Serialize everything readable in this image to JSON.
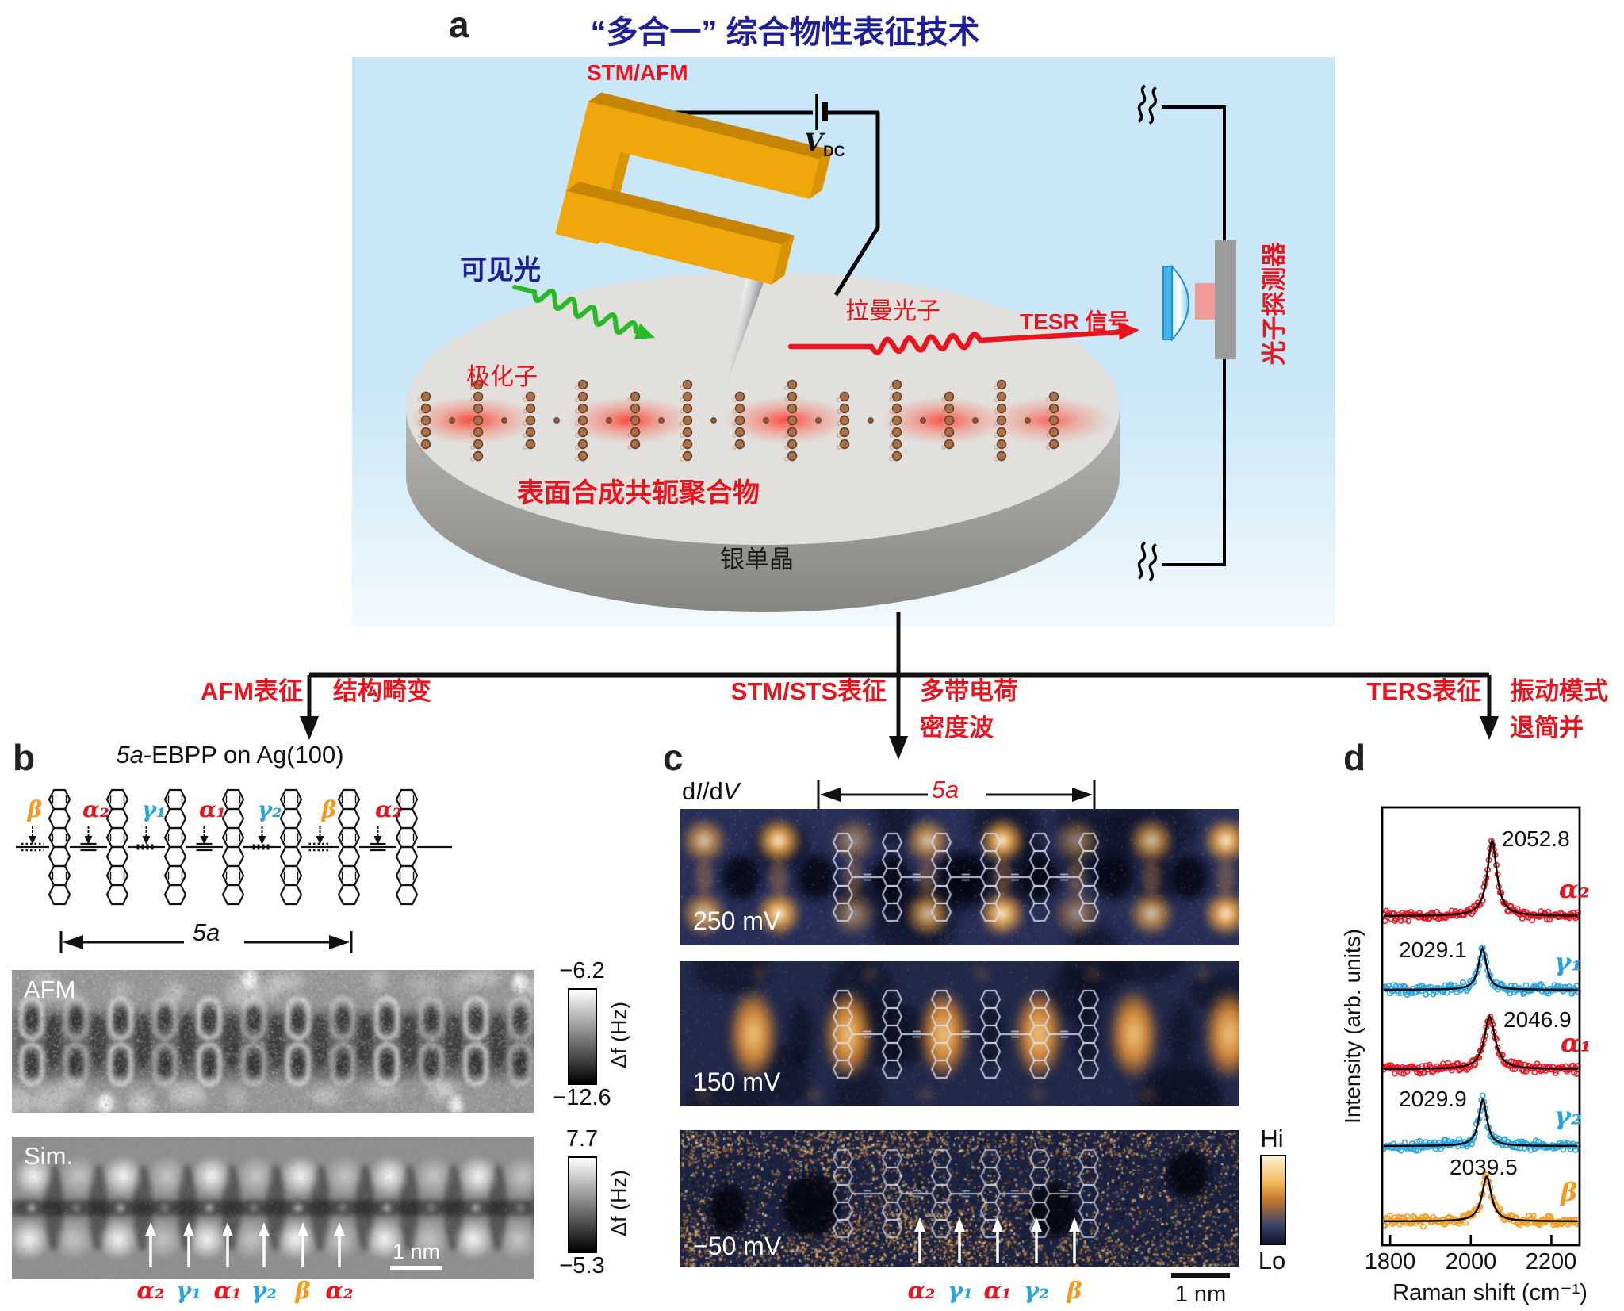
{
  "title": "“多合一” 综合物性表征技术",
  "panel_a": {
    "label": "a",
    "stm_afm": "STM/AFM",
    "vdc": {
      "v": "V",
      "sub": "DC"
    },
    "visible_light": "可见光",
    "polaron": "极化子",
    "raman_photon": "拉曼光子",
    "tesr_signal": "TESR 信号",
    "photon_detector": "光子探测器",
    "polymer": "表面合成共轭聚合物",
    "silver_crystal": "银单晶"
  },
  "branches": [
    {
      "method": "AFM表征",
      "result1": "结构畸变",
      "result2": ""
    },
    {
      "method": "STM/STS表征",
      "result1": "多带电荷",
      "result2": "密度波"
    },
    {
      "method": "TERS表征",
      "result1": "振动模式",
      "result2": "退简并"
    }
  ],
  "panel_b": {
    "label": "b",
    "title_pre": "5a",
    "title_rest": "-EBPP on Ag(100)",
    "bond_labels": [
      {
        "t": "β",
        "c": "#f59a1d"
      },
      {
        "t": "α₂",
        "c": "#e8141e"
      },
      {
        "t": "γ₁",
        "c": "#29a3dc"
      },
      {
        "t": "α₁",
        "c": "#e8141e"
      },
      {
        "t": "γ₂",
        "c": "#29a3dc"
      },
      {
        "t": "β",
        "c": "#f59a1d"
      },
      {
        "t": "α₂",
        "c": "#e8141e"
      }
    ],
    "span_label": "5a",
    "afm_tag": "AFM",
    "sim_tag": "Sim.",
    "afm_scale": {
      "top": "−6.2",
      "bottom": "−12.6",
      "unit": "Δf (Hz)"
    },
    "sim_scale": {
      "top": "7.7",
      "bottom": "−5.3",
      "unit": "Δf (Hz)"
    },
    "arrow_labels": [
      {
        "t": "α₂",
        "c": "#e8141e"
      },
      {
        "t": "γ₁",
        "c": "#29a3dc"
      },
      {
        "t": "α₁",
        "c": "#e8141e"
      },
      {
        "t": "γ₂",
        "c": "#29a3dc"
      },
      {
        "t": "β",
        "c": "#f59a1d"
      },
      {
        "t": "α₂",
        "c": "#e8141e"
      }
    ],
    "scalebar": "1 nm"
  },
  "panel_c": {
    "label": "c",
    "didv": {
      "d1": "d",
      "i": "I",
      "d2": "/d",
      "v": "V"
    },
    "span_label": "5a",
    "bias_labels": [
      "250 mV",
      "150 mV",
      "−50 mV"
    ],
    "colorbar": {
      "hi": "Hi",
      "lo": "Lo"
    },
    "arrow_labels": [
      {
        "t": "α₂",
        "c": "#e8141e"
      },
      {
        "t": "γ₁",
        "c": "#29a3dc"
      },
      {
        "t": "α₁",
        "c": "#e8141e"
      },
      {
        "t": "γ₂",
        "c": "#29a3dc"
      },
      {
        "t": "β",
        "c": "#f59a1d"
      }
    ],
    "scalebar": "1 nm"
  },
  "panel_d": {
    "label": "d",
    "ylabel": "Intensity (arb. units)",
    "xlabel": "Raman shift (cm⁻¹)"
  },
  "chart_data": {
    "type": "scatter",
    "title": "TERS spectra of bond modes",
    "xlabel": "Raman shift (cm⁻¹)",
    "ylabel": "Intensity (arb. units)",
    "xlim": [
      1780,
      2270
    ],
    "xticks": [
      1800,
      2000,
      2200
    ],
    "stacked": true,
    "fit_color": "#000000",
    "series": [
      {
        "name": "α₂",
        "color": "#e8141e",
        "peak": 2052.8,
        "peak_label": "2052.8",
        "height": 1.0,
        "fwhm": 28
      },
      {
        "name": "γ₁",
        "color": "#29a3dc",
        "peak": 2029.1,
        "peak_label": "2029.1",
        "height": 0.55,
        "fwhm": 24
      },
      {
        "name": "α₁",
        "color": "#e8141e",
        "peak": 2046.9,
        "peak_label": "2046.9",
        "height": 0.7,
        "fwhm": 32
      },
      {
        "name": "γ₂",
        "color": "#29a3dc",
        "peak": 2029.9,
        "peak_label": "2029.9",
        "height": 0.62,
        "fwhm": 24
      },
      {
        "name": "β",
        "color": "#f59a1d",
        "peak": 2039.5,
        "peak_label": "2039.5",
        "height": 0.6,
        "fwhm": 28
      }
    ]
  },
  "colors": {
    "red": "#e8141e",
    "cyan": "#29a3dc",
    "orange": "#f59a1d",
    "navy": "#1e1e96",
    "gold": "#f0a70c",
    "bg_blue": "#c9e7f7"
  }
}
